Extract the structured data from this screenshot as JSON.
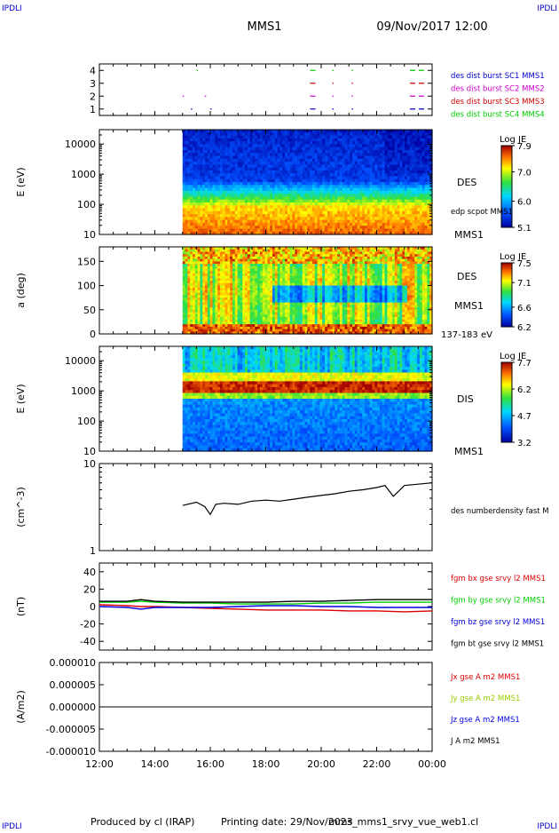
{
  "header": {
    "corner_label": "IPDLI",
    "mission": "MMS1",
    "datetime": "09/Nov/2017 12:00"
  },
  "footer": {
    "produced_by": "Produced by cl (IRAP)",
    "printing_date": "Printing date: 29/Nov/2023",
    "filename": "mms_mms1_srvy_vue_web1.cl"
  },
  "colors": {
    "mms1": "#0000cc",
    "mms2": "#cc00cc",
    "mms3": "#cc0000",
    "mms4": "#00cc00",
    "x_component": "#dd0000",
    "y_component": "#00cc00",
    "z_component": "#0000dd",
    "total": "#000000"
  },
  "chart_data": [
    {
      "type": "scatter",
      "panel": "burst-availability",
      "ylim": [
        0.5,
        4.5
      ],
      "yticks": [
        "1",
        "2",
        "3",
        "4"
      ],
      "series": [
        {
          "name": "des dist burst SC1 MMS1",
          "level": 1,
          "color": "#0000cc",
          "segments": [
            [
              15.3,
              15.35
            ],
            [
              16.0,
              16.05
            ],
            [
              19.6,
              19.8
            ],
            [
              20.4,
              20.45
            ],
            [
              21.1,
              21.15
            ],
            [
              23.2,
              23.8
            ]
          ]
        },
        {
          "name": "des dist burst SC2 MMS2",
          "level": 2,
          "color": "#cc00cc",
          "segments": [
            [
              15.0,
              15.05
            ],
            [
              15.8,
              15.85
            ],
            [
              19.6,
              19.8
            ],
            [
              20.4,
              20.45
            ],
            [
              21.1,
              21.15
            ],
            [
              23.2,
              23.8
            ]
          ]
        },
        {
          "name": "des dist burst SC3 MMS3",
          "level": 3,
          "color": "#cc0000",
          "segments": [
            [
              19.6,
              19.8
            ],
            [
              20.4,
              20.45
            ],
            [
              21.1,
              21.15
            ],
            [
              23.2,
              23.8
            ]
          ]
        },
        {
          "name": "des dist burst SC4 MMS4",
          "level": 4,
          "color": "#00cc00",
          "segments": [
            [
              15.5,
              15.55
            ],
            [
              19.6,
              19.8
            ],
            [
              20.4,
              20.45
            ],
            [
              21.1,
              21.15
            ],
            [
              23.2,
              23.8
            ]
          ]
        }
      ]
    },
    {
      "type": "heatmap",
      "panel": "des-energy-spectrogram",
      "ylabel": "E (eV)",
      "yscale": "log",
      "ylim": [
        10,
        30000
      ],
      "yticks": [
        "10",
        "100",
        "1000",
        "10000"
      ],
      "data_start_hour": 15.0,
      "instrument_label": "DES",
      "side_label": "edp scpot MMS1",
      "spacecraft": "MMS1",
      "colorbar": {
        "title": "Log JE",
        "range": [
          5.1,
          7.9
        ],
        "ticks": [
          "5.1",
          "6.0",
          "7.0",
          "7.9"
        ]
      }
    },
    {
      "type": "heatmap",
      "panel": "des-pitch-angle",
      "ylabel": "a (deg)",
      "ylim": [
        0,
        180
      ],
      "yticks": [
        "0",
        "50",
        "100",
        "150"
      ],
      "data_start_hour": 15.0,
      "instrument_label": "DES",
      "spacecraft": "MMS1",
      "energy_range": "137-183 eV",
      "colorbar": {
        "title": "Log JE",
        "range": [
          6.2,
          7.5
        ],
        "ticks": [
          "6.2",
          "6.6",
          "7.1",
          "7.5"
        ]
      }
    },
    {
      "type": "heatmap",
      "panel": "dis-energy-spectrogram",
      "ylabel": "E (eV)",
      "yscale": "log",
      "ylim": [
        10,
        30000
      ],
      "yticks": [
        "10",
        "100",
        "1000",
        "10000"
      ],
      "data_start_hour": 15.0,
      "instrument_label": "DIS",
      "spacecraft": "MMS1",
      "colorbar": {
        "title": "Log JE",
        "range": [
          3.2,
          7.7
        ],
        "ticks": [
          "3.2",
          "4.7",
          "6.2",
          "7.7"
        ]
      }
    },
    {
      "type": "line",
      "panel": "electron-density",
      "ylabel": "(cm^-3)",
      "yscale": "log",
      "ylim": [
        1,
        10
      ],
      "yticks": [
        "1",
        "10"
      ],
      "series": [
        {
          "name": "des numberdensity fast M",
          "color": "#000000",
          "x": [
            15.0,
            15.5,
            15.8,
            16.0,
            16.2,
            16.5,
            17.0,
            17.5,
            18.0,
            18.5,
            19.0,
            19.5,
            20.0,
            20.5,
            21.0,
            21.5,
            22.0,
            22.3,
            22.6,
            23.0,
            23.5,
            24.0
          ],
          "y": [
            3.3,
            3.6,
            3.2,
            2.6,
            3.4,
            3.5,
            3.4,
            3.7,
            3.8,
            3.7,
            3.9,
            4.1,
            4.3,
            4.5,
            4.8,
            5.0,
            5.3,
            5.6,
            4.2,
            5.6,
            5.8,
            6.0
          ]
        }
      ]
    },
    {
      "type": "line",
      "panel": "magnetic-field",
      "ylabel": "(nT)",
      "ylim": [
        -50,
        50
      ],
      "yticks": [
        "-40",
        "-20",
        "0",
        "20",
        "40"
      ],
      "series": [
        {
          "name": "fgm bx gse srvy l2 MMS1",
          "color": "#dd0000",
          "x": [
            12,
            13,
            13.5,
            14,
            15,
            16,
            17,
            18,
            19,
            20,
            21,
            22,
            23,
            24
          ],
          "y": [
            2,
            1,
            0,
            0,
            -1,
            -2,
            -3,
            -4,
            -4,
            -4,
            -5,
            -5,
            -6,
            -5
          ]
        },
        {
          "name": "fgm by gse srvy l2 MMS1",
          "color": "#00cc00",
          "x": [
            12,
            13,
            13.5,
            14,
            15,
            16,
            17,
            18,
            19,
            20,
            21,
            22,
            23,
            24
          ],
          "y": [
            5,
            5,
            6,
            5,
            4,
            4,
            3,
            3,
            3,
            4,
            4,
            5,
            5,
            5
          ]
        },
        {
          "name": "fgm bz gse srvy l2 MMS1",
          "color": "#0000dd",
          "x": [
            12,
            13,
            13.5,
            14,
            15,
            16,
            17,
            18,
            19,
            20,
            21,
            22,
            23,
            24
          ],
          "y": [
            0,
            -1,
            -3,
            -1,
            -1,
            -1,
            0,
            1,
            1,
            0,
            0,
            -1,
            -1,
            -1
          ]
        },
        {
          "name": "fgm bt gse srvy l2 MMS1",
          "color": "#000000",
          "x": [
            12,
            13,
            13.5,
            14,
            15,
            16,
            17,
            18,
            19,
            20,
            21,
            22,
            23,
            24
          ],
          "y": [
            6,
            6,
            8,
            6,
            5,
            5,
            5,
            5,
            6,
            6,
            7,
            8,
            8,
            8
          ]
        }
      ]
    },
    {
      "type": "line",
      "panel": "current-density",
      "ylabel": "(A/m2)",
      "ylim": [
        -1e-05,
        1e-05
      ],
      "yticks": [
        "-0.000010",
        "-0.000005",
        "0.000000",
        "0.000005",
        "0.000010"
      ],
      "xlim": [
        12,
        24
      ],
      "xticks": [
        "12:00",
        "14:00",
        "16:00",
        "18:00",
        "20:00",
        "22:00",
        "00:00"
      ],
      "series": [
        {
          "name": "Jx gse A m2 MMS1",
          "color": "#dd0000",
          "x": [
            12,
            24
          ],
          "y": [
            0,
            0
          ]
        },
        {
          "name": "Jy gse A m2 MMS1",
          "color": "#99cc00",
          "x": [
            12,
            24
          ],
          "y": [
            0,
            0
          ]
        },
        {
          "name": "Jz gse A m2 MMS1",
          "color": "#0000dd",
          "x": [
            12,
            24
          ],
          "y": [
            0,
            0
          ]
        },
        {
          "name": "J A m2 MMS1",
          "color": "#000000",
          "x": [
            12,
            24
          ],
          "y": [
            0,
            0
          ]
        }
      ]
    }
  ]
}
